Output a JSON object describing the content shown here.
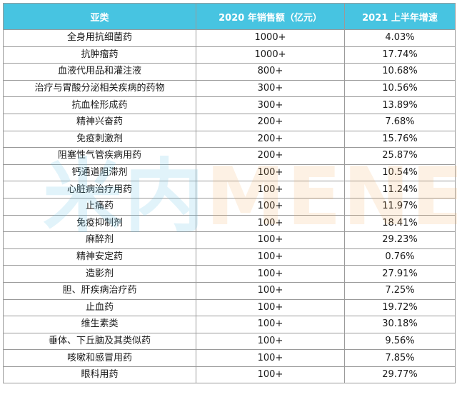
{
  "table": {
    "headers": [
      "亚类",
      "2020 年销售额（亿元）",
      "2021 上半年增速"
    ],
    "rows": [
      [
        "全身用抗细菌药",
        "1000+",
        "4.03%"
      ],
      [
        "抗肿瘤药",
        "1000+",
        "17.74%"
      ],
      [
        "血液代用品和灌注液",
        "800+",
        "10.68%"
      ],
      [
        "治疗与胃酸分泌相关疾病的药物",
        "300+",
        "10.56%"
      ],
      [
        "抗血栓形成药",
        "300+",
        "13.89%"
      ],
      [
        "精神兴奋药",
        "200+",
        "7.68%"
      ],
      [
        "免疫刺激剂",
        "200+",
        "15.76%"
      ],
      [
        "阻塞性气管疾病用药",
        "200+",
        "25.87%"
      ],
      [
        "钙通道阻滞剂",
        "100+",
        "10.54%"
      ],
      [
        "心脏病治疗用药",
        "100+",
        "11.24%"
      ],
      [
        "止痛药",
        "100+",
        "11.97%"
      ],
      [
        "免疫抑制剂",
        "100+",
        "18.41%"
      ],
      [
        "麻醉剂",
        "100+",
        "29.23%"
      ],
      [
        "精神安定药",
        "100+",
        "0.76%"
      ],
      [
        "造影剂",
        "100+",
        "27.91%"
      ],
      [
        "胆、肝疾病治疗药",
        "100+",
        "7.25%"
      ],
      [
        "止血药",
        "100+",
        "19.72%"
      ],
      [
        "维生素类",
        "100+",
        "30.18%"
      ],
      [
        "垂体、下丘脑及其类似药",
        "100+",
        "9.56%"
      ],
      [
        "咳嗽和感冒用药",
        "100+",
        "7.85%"
      ],
      [
        "眼科用药",
        "100+",
        "29.77%"
      ]
    ]
  },
  "watermark": {
    "cn": "米内",
    "en": "MENET"
  },
  "colors": {
    "header_bg": "#47c4e1",
    "header_text": "#ffffff",
    "border": "#9a9a9a"
  }
}
